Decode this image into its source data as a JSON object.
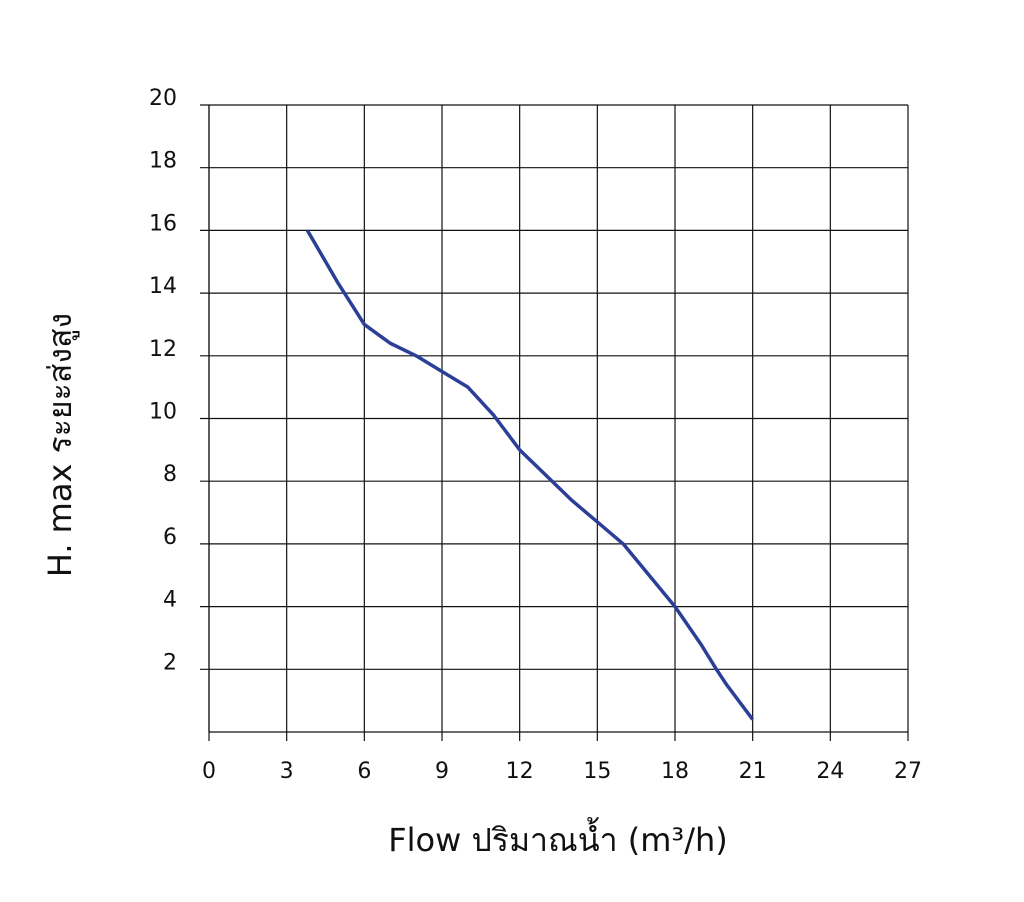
{
  "chart_data": {
    "type": "line",
    "xlabel": "Flow  ปริมาณน้ำ (m³/h)",
    "ylabel": "H. max  ระยะส่งสูง",
    "x": [
      3.8,
      5,
      6,
      7,
      8,
      9,
      10,
      11,
      12,
      13,
      14,
      15,
      16,
      17,
      18,
      19,
      19.6,
      20,
      21
    ],
    "series": [
      {
        "name": "H. max",
        "color": "#2b3f98",
        "values": [
          16,
          14.3,
          13,
          12.4,
          12,
          11.5,
          11,
          10.1,
          9,
          8.2,
          7.4,
          6.7,
          6,
          5,
          4,
          2.8,
          2,
          1.5,
          0.4
        ]
      }
    ],
    "xlim": [
      0,
      27
    ],
    "xticks": [
      0,
      3,
      6,
      9,
      12,
      15,
      18,
      21,
      24,
      27
    ],
    "ylim": [
      0,
      20
    ],
    "yticks": [
      2,
      4,
      6,
      8,
      10,
      12,
      14,
      16,
      18,
      20
    ],
    "grid": true
  }
}
